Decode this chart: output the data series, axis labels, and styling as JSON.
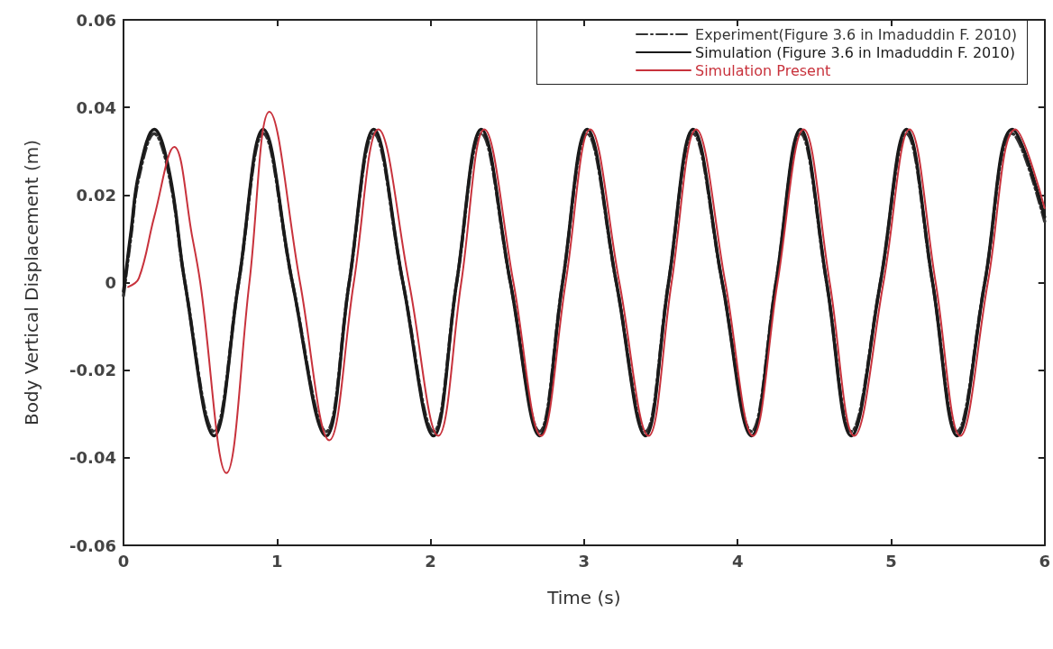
{
  "chart_data": {
    "type": "line",
    "xlabel": "Time (s)",
    "ylabel": "Body Vertical Displacement (m)",
    "xlim": [
      0,
      6
    ],
    "xticks": [
      0,
      1,
      2,
      3,
      4,
      5,
      6
    ],
    "ylim": [
      -0.06,
      0.06
    ],
    "yticks": [
      -0.06,
      -0.04,
      -0.02,
      0,
      0.02,
      0.04,
      0.06
    ],
    "grid": false,
    "legend": "top right",
    "marker": "none",
    "series": [
      {
        "name": "Experiment(Figure 3.6 in Imaduddin F. 2010)",
        "color": "#333333",
        "line_style": "dashed",
        "x": [
          0,
          0.05,
          0.1,
          0.2,
          0.3,
          0.4,
          0.59,
          0.75,
          0.91,
          1.1,
          1.32,
          1.47,
          1.63,
          1.82,
          2.02,
          2.17,
          2.33,
          2.52,
          2.71,
          2.86,
          3.02,
          3.21,
          3.4,
          3.55,
          3.71,
          3.9,
          4.09,
          4.25,
          4.41,
          4.58,
          4.74,
          4.93,
          5.1,
          5.27,
          5.43,
          5.61,
          5.79,
          6
        ],
        "values": [
          -0.003,
          0.011,
          0.024,
          0.034,
          0.024,
          0,
          -0.034,
          0,
          0.034,
          0,
          -0.034,
          0,
          0.034,
          0,
          -0.034,
          0,
          0.034,
          0,
          -0.034,
          0,
          0.034,
          0,
          -0.034,
          0,
          0.034,
          0,
          -0.034,
          0,
          0.034,
          0,
          -0.034,
          0,
          0.034,
          0,
          -0.034,
          0,
          0.034,
          0.014
        ]
      },
      {
        "name": "Simulation (Figure 3.6 in Imaduddin F. 2010)",
        "color": "#1a1a1a",
        "line_style": "solid",
        "x": [
          0,
          0.05,
          0.1,
          0.2,
          0.3,
          0.4,
          0.59,
          0.75,
          0.91,
          1.1,
          1.32,
          1.47,
          1.63,
          1.82,
          2.02,
          2.17,
          2.33,
          2.52,
          2.71,
          2.86,
          3.02,
          3.21,
          3.4,
          3.55,
          3.71,
          3.9,
          4.09,
          4.25,
          4.41,
          4.58,
          4.74,
          4.93,
          5.1,
          5.27,
          5.43,
          5.61,
          5.79,
          6
        ],
        "values": [
          -0.002,
          0.012,
          0.025,
          0.035,
          0.025,
          0,
          -0.035,
          0,
          0.035,
          0,
          -0.035,
          0,
          0.035,
          0,
          -0.035,
          0,
          0.035,
          0,
          -0.035,
          0,
          0.035,
          0,
          -0.035,
          0,
          0.035,
          0,
          -0.035,
          0,
          0.035,
          0,
          -0.035,
          0,
          0.035,
          0,
          -0.035,
          0,
          0.035,
          0.015
        ]
      },
      {
        "name": "Simulation Present",
        "color": "#c8323c",
        "line_style": "solid",
        "x": [
          0.03,
          0.1,
          0.2,
          0.33,
          0.45,
          0.5,
          0.67,
          0.82,
          0.95,
          1.15,
          1.34,
          1.5,
          1.66,
          1.86,
          2.05,
          2.2,
          2.35,
          2.54,
          2.72,
          2.88,
          3.04,
          3.23,
          3.42,
          3.57,
          3.73,
          3.92,
          4.1,
          4.26,
          4.43,
          4.6,
          4.76,
          4.95,
          5.12,
          5.29,
          5.45,
          5.63,
          5.81,
          6
        ],
        "values": [
          -0.001,
          0.001,
          0.015,
          0.031,
          0.01,
          0,
          -0.0435,
          0,
          0.039,
          0,
          -0.036,
          0,
          0.035,
          0,
          -0.035,
          0,
          0.035,
          0,
          -0.035,
          0,
          0.035,
          0,
          -0.035,
          0,
          0.035,
          0,
          -0.035,
          0,
          0.035,
          0,
          -0.035,
          0,
          0.035,
          0,
          -0.035,
          0,
          0.035,
          0.017
        ]
      }
    ]
  }
}
